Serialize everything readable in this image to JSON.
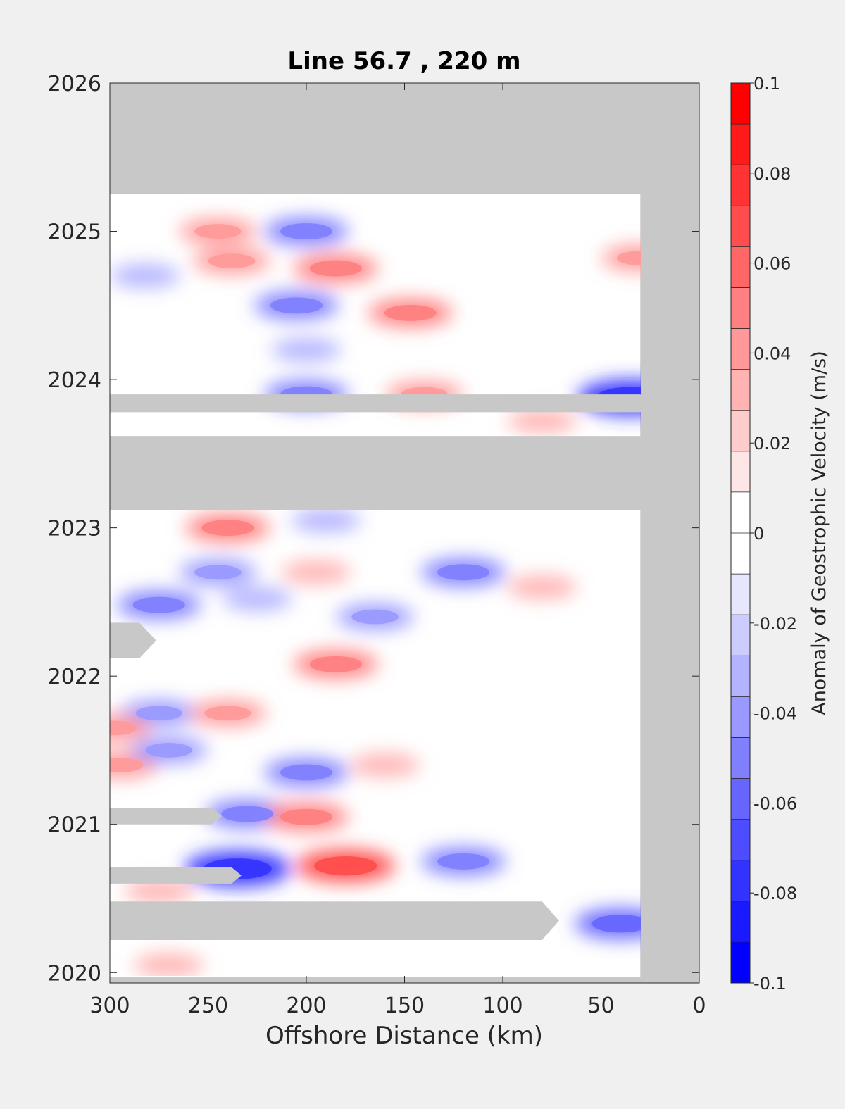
{
  "chart_data": {
    "type": "heatmap",
    "subtype": "filled-contour",
    "title": "Line 56.7 , 220 m",
    "xlabel": "Offshore Distance (km)",
    "ylabel": "",
    "xlim": [
      300,
      0
    ],
    "x_reversed": true,
    "ylim": [
      2019.93,
      2026
    ],
    "xticks": [
      "300",
      "250",
      "200",
      "150",
      "100",
      "50",
      "0"
    ],
    "yticks": [
      "2020",
      "2021",
      "2022",
      "2023",
      "2024",
      "2025",
      "2026"
    ],
    "xtick_values": [
      300,
      250,
      200,
      150,
      100,
      50,
      0
    ],
    "ytick_values": [
      2020,
      2021,
      2022,
      2023,
      2024,
      2025,
      2026
    ],
    "nodata_color": "#c8c8c8",
    "colorbar": {
      "label": "Anomaly of Geostrophic Velocity (m/s)",
      "min": -0.1,
      "max": 0.1,
      "step": 0.01,
      "tick_values": [
        0.1,
        0.08,
        0.06,
        0.04,
        0.02,
        0,
        -0.02,
        -0.04,
        -0.06,
        -0.08,
        -0.1
      ],
      "tick_labels": [
        "0.1",
        "0.08",
        "0.06",
        "0.04",
        "0.02",
        "0",
        "-0.02",
        "-0.04",
        "-0.06",
        "-0.08",
        "-0.1"
      ],
      "colors_high_to_low": [
        "#ff0000",
        "#ff1a1a",
        "#ff3333",
        "#ff4d4d",
        "#ff6666",
        "#ff8080",
        "#ff9999",
        "#ffb3b3",
        "#ffcccc",
        "#ffe6e6",
        "#ffffff",
        "#ffffff",
        "#e6e6ff",
        "#ccccff",
        "#b3b3ff",
        "#9999ff",
        "#8080ff",
        "#6666ff",
        "#4d4dff",
        "#3333ff",
        "#1a1aff",
        "#0000ff"
      ]
    },
    "data_coverage": {
      "x_range_km": [
        300,
        30
      ],
      "y_range": [
        2019.97,
        2025.25
      ]
    },
    "nodata_bands": [
      {
        "y": [
          2023.12,
          2023.62
        ],
        "x": [
          300,
          30
        ]
      },
      {
        "y": [
          2023.78,
          2023.9
        ],
        "x": [
          300,
          30
        ]
      },
      {
        "y": [
          2020.22,
          2020.48
        ],
        "x": [
          300,
          80
        ]
      },
      {
        "y": [
          2020.6,
          2020.71
        ],
        "x": [
          300,
          238
        ]
      },
      {
        "y": [
          2021.0,
          2021.11
        ],
        "x": [
          300,
          248
        ]
      },
      {
        "y": [
          2022.12,
          2022.36
        ],
        "x": [
          300,
          285
        ]
      }
    ],
    "features": [
      {
        "x": 200,
        "y": 2025.0,
        "value": -0.05
      },
      {
        "x": 245,
        "y": 2025.0,
        "value": 0.04
      },
      {
        "x": 238,
        "y": 2024.8,
        "value": 0.04
      },
      {
        "x": 185,
        "y": 2024.75,
        "value": 0.05
      },
      {
        "x": 147,
        "y": 2024.45,
        "value": 0.05
      },
      {
        "x": 205,
        "y": 2024.5,
        "value": -0.05
      },
      {
        "x": 30,
        "y": 2024.82,
        "value": 0.04
      },
      {
        "x": 282,
        "y": 2024.7,
        "value": -0.03
      },
      {
        "x": 200,
        "y": 2024.2,
        "value": -0.03
      },
      {
        "x": 200,
        "y": 2023.9,
        "value": -0.05
      },
      {
        "x": 140,
        "y": 2023.9,
        "value": 0.04
      },
      {
        "x": 35,
        "y": 2023.88,
        "value": -0.08
      },
      {
        "x": 80,
        "y": 2023.72,
        "value": 0.03
      },
      {
        "x": 240,
        "y": 2023.0,
        "value": 0.05
      },
      {
        "x": 190,
        "y": 2023.05,
        "value": -0.03
      },
      {
        "x": 245,
        "y": 2022.7,
        "value": -0.04
      },
      {
        "x": 275,
        "y": 2022.48,
        "value": -0.05
      },
      {
        "x": 120,
        "y": 2022.7,
        "value": -0.05
      },
      {
        "x": 195,
        "y": 2022.7,
        "value": 0.03
      },
      {
        "x": 165,
        "y": 2022.4,
        "value": -0.04
      },
      {
        "x": 225,
        "y": 2022.52,
        "value": -0.03
      },
      {
        "x": 80,
        "y": 2022.6,
        "value": 0.03
      },
      {
        "x": 185,
        "y": 2022.08,
        "value": 0.05
      },
      {
        "x": 275,
        "y": 2021.75,
        "value": -0.04
      },
      {
        "x": 240,
        "y": 2021.75,
        "value": 0.04
      },
      {
        "x": 298,
        "y": 2021.65,
        "value": 0.04
      },
      {
        "x": 295,
        "y": 2021.4,
        "value": 0.04
      },
      {
        "x": 270,
        "y": 2021.5,
        "value": -0.04
      },
      {
        "x": 200,
        "y": 2021.35,
        "value": -0.05
      },
      {
        "x": 160,
        "y": 2021.4,
        "value": 0.03
      },
      {
        "x": 230,
        "y": 2021.07,
        "value": -0.05
      },
      {
        "x": 200,
        "y": 2021.05,
        "value": 0.05
      },
      {
        "x": 235,
        "y": 2020.7,
        "value": -0.08
      },
      {
        "x": 180,
        "y": 2020.72,
        "value": 0.07
      },
      {
        "x": 120,
        "y": 2020.75,
        "value": -0.05
      },
      {
        "x": 275,
        "y": 2020.55,
        "value": 0.03
      },
      {
        "x": 40,
        "y": 2020.33,
        "value": -0.06
      },
      {
        "x": 270,
        "y": 2020.05,
        "value": 0.03
      }
    ]
  }
}
